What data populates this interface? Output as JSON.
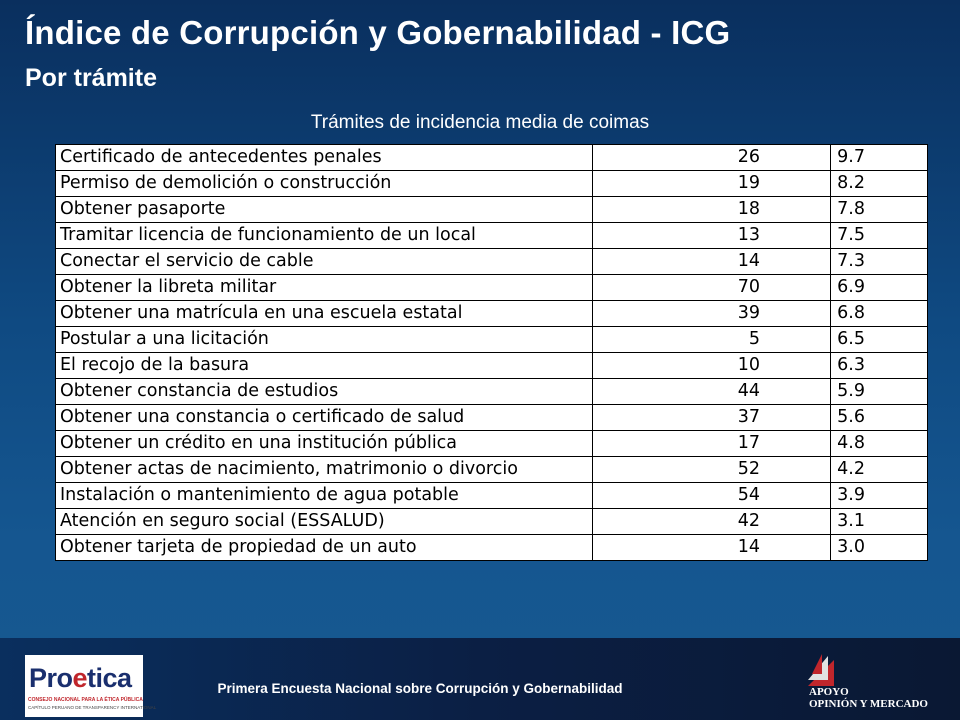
{
  "header": {
    "title": "Índice de Corrupción y Gobernabilidad - ICG",
    "subtitle": "Por trámite"
  },
  "table": {
    "caption": "Trámites de incidencia media de coimas",
    "rows": [
      {
        "tramite": "Certificado de antecedentes penales",
        "n": "26",
        "score": "9.7"
      },
      {
        "tramite": "Permiso de demolición o construcción",
        "n": "19",
        "score": "8.2"
      },
      {
        "tramite": "Obtener pasaporte",
        "n": "18",
        "score": "7.8"
      },
      {
        "tramite": "Tramitar licencia de funcionamiento de un local",
        "n": "13",
        "score": "7.5"
      },
      {
        "tramite": "Conectar el servicio de cable",
        "n": "14",
        "score": "7.3"
      },
      {
        "tramite": "Obtener la libreta militar",
        "n": "70",
        "score": "6.9"
      },
      {
        "tramite": "Obtener una matrícula en una escuela estatal",
        "n": "39",
        "score": "6.8"
      },
      {
        "tramite": "Postular a una licitación",
        "n": "5",
        "score": "6.5"
      },
      {
        "tramite": "El recojo de la basura",
        "n": "10",
        "score": "6.3"
      },
      {
        "tramite": "Obtener constancia de estudios",
        "n": "44",
        "score": "5.9"
      },
      {
        "tramite": "Obtener una constancia o certificado de salud",
        "n": "37",
        "score": "5.6"
      },
      {
        "tramite": "Obtener un crédito en una institución pública",
        "n": "17",
        "score": "4.8"
      },
      {
        "tramite": "Obtener actas de nacimiento, matrimonio o divorcio",
        "n": "52",
        "score": "4.2"
      },
      {
        "tramite": "Instalación o mantenimiento de agua potable",
        "n": "54",
        "score": "3.9"
      },
      {
        "tramite": "Atención en  seguro social (ESSALUD)",
        "n": "42",
        "score": "3.1"
      },
      {
        "tramite": "Obtener tarjeta de propiedad de un auto",
        "n": "14",
        "score": "3.0"
      }
    ]
  },
  "footer": {
    "text": "Primera Encuesta Nacional sobre Corrupción y Gobernabilidad",
    "logo_left": {
      "word_pre": "Pro",
      "word_e": "e",
      "word_post": "tica",
      "line1": "CONSEJO NACIONAL PARA LA ÉTICA PÚBLICA",
      "line2": "CAPÍTULO PERUANO DE TRANSPARENCY INTERNATIONAL"
    },
    "logo_right": {
      "line1": "APOYO",
      "line2": "OPINIÓN Y MERCADO"
    }
  },
  "colors": {
    "background_top": "#0a2f5e",
    "background_bottom": "#16598f",
    "logo_red": "#c0262c",
    "logo_blue": "#1a2f6e"
  }
}
